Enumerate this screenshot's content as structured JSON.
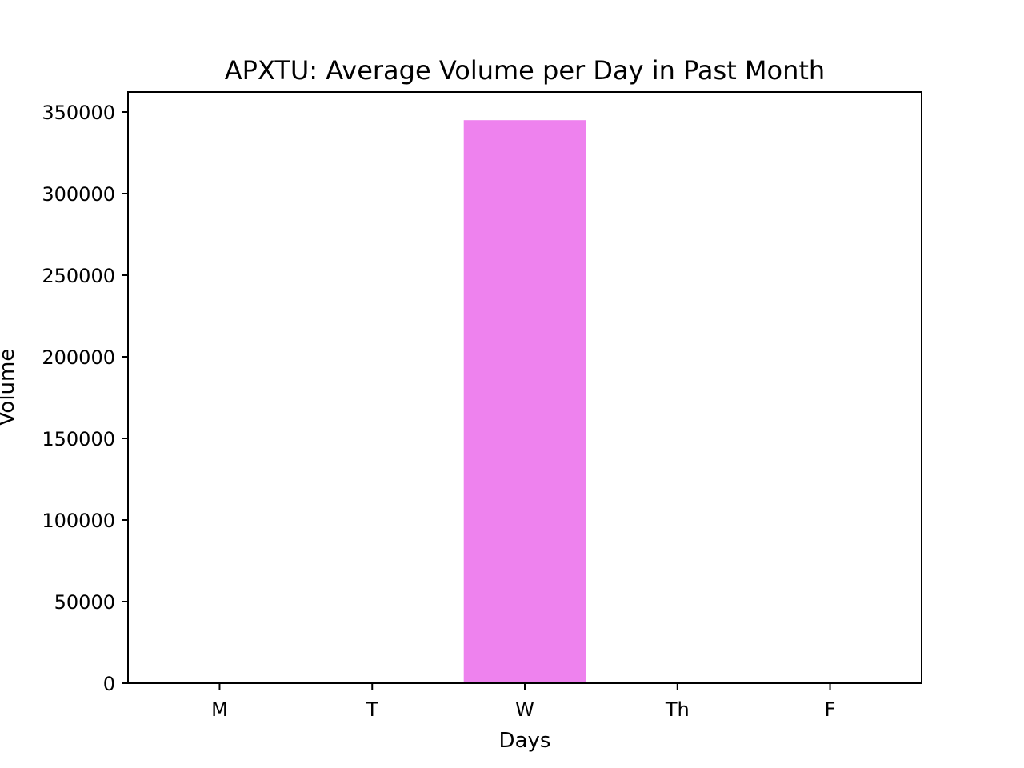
{
  "chart_data": {
    "type": "bar",
    "title": "APXTU: Average Volume per Day in Past Month",
    "xlabel": "Days",
    "ylabel": "Volume",
    "categories": [
      "M",
      "T",
      "W",
      "Th",
      "F"
    ],
    "values": [
      0,
      0,
      345000,
      0,
      0
    ],
    "ylim": [
      0,
      362250
    ],
    "yticks": [
      0,
      50000,
      100000,
      150000,
      200000,
      250000,
      300000,
      350000
    ],
    "bar_color": "#ee82ee",
    "grid": false,
    "legend": "none"
  }
}
